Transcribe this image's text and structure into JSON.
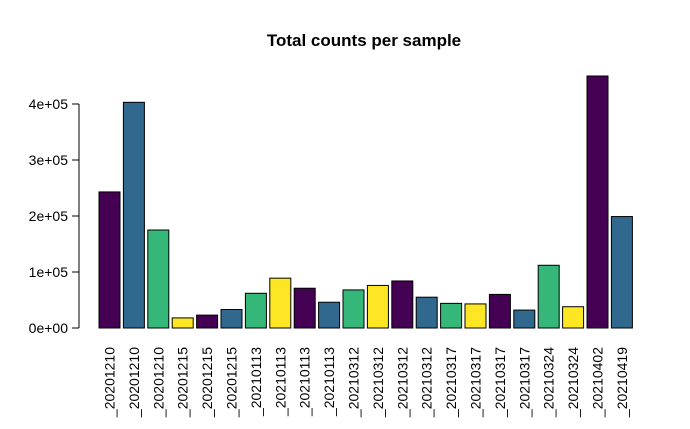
{
  "chart_data": {
    "type": "bar",
    "title": "Total counts per sample",
    "xlabel": "",
    "ylabel": "",
    "ylim": [
      0,
      450000
    ],
    "yticks": [
      0,
      100000,
      200000,
      300000,
      400000
    ],
    "ytick_labels": [
      "0e+00",
      "1e+05",
      "2e+05",
      "3e+05",
      "4e+05"
    ],
    "grid": false,
    "legend": "none",
    "colors": {
      "dark_purple": "#440154",
      "blue": "#31688e",
      "green": "#35b779",
      "yellow": "#fde725"
    },
    "categories": [
      "_20201210",
      "_20201210",
      "_20201210",
      "_20201215",
      "_20201215",
      "_20201215",
      "_20210113",
      "_20210113",
      "_20210113",
      "_20210113",
      "_20210312",
      "_20210312",
      "_20210312",
      "_20210312",
      "_20210317",
      "_20210317",
      "_20210317",
      "_20210317",
      "_20210324",
      "_20210324",
      "_20210402",
      "_20210419"
    ],
    "values": [
      243000,
      403000,
      175000,
      18000,
      23000,
      33000,
      62000,
      89000,
      71000,
      46000,
      68000,
      76000,
      84000,
      55000,
      44000,
      43000,
      60000,
      32000,
      112000,
      38000,
      450000,
      199000
    ],
    "bar_colors": [
      "#440154",
      "#31688e",
      "#35b779",
      "#fde725",
      "#440154",
      "#31688e",
      "#35b779",
      "#fde725",
      "#440154",
      "#31688e",
      "#35b779",
      "#fde725",
      "#440154",
      "#31688e",
      "#35b779",
      "#fde725",
      "#440154",
      "#31688e",
      "#35b779",
      "#fde725",
      "#440154",
      "#31688e"
    ]
  }
}
